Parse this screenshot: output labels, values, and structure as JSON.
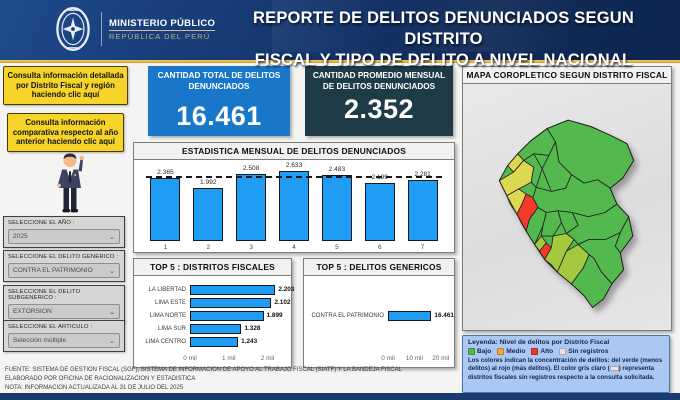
{
  "header": {
    "logo_title": "MINISTERIO PÚBLICO",
    "logo_subtitle": "REPÚBLICA DEL PERÚ",
    "title_line1": "REPORTE DE DELITOS DENUNCIADOS SEGUN DISTRITO",
    "title_line2": "FISCAL Y TIPO DE DELITO A NIVEL NACIONAL"
  },
  "sidebar": {
    "callouts": [
      {
        "text": "Consulta información detallada por Distrito Fiscal y región haciendo clic aquí"
      },
      {
        "text": "Consulta información comparativa respecto al año anterior haciendo clic aquí"
      }
    ],
    "slicers": [
      {
        "label": "SELECCIONE EL AÑO :",
        "value": "2025"
      },
      {
        "label": "SELECCIONE EL DELITO GENERICO :",
        "value": "CONTRA EL PATRIMONIO"
      },
      {
        "label": "SELECCIONE EL DELITO SUBGENERICO :",
        "value": "EXTORSION"
      },
      {
        "label": "SELECCIONE EL ARTICULO :",
        "value": "Selección múltiple"
      }
    ]
  },
  "kpis": [
    {
      "label": "CANTIDAD TOTAL DE DELITOS DENUNCIADOS",
      "value": "16.461",
      "color": "#1877c9"
    },
    {
      "label": "CANTIDAD PROMEDIO MENSUAL DE DELITOS DENUNCIADOS",
      "value": "2.352",
      "color": "#1f3b47"
    }
  ],
  "chart_data": [
    {
      "id": "monthly",
      "type": "bar",
      "orientation": "vertical",
      "title": "ESTADISTICA MENSUAL DE DELITOS DENUNCIADOS",
      "categories": [
        "1",
        "2",
        "3",
        "4",
        "5",
        "6",
        "7"
      ],
      "values": [
        2365,
        1992,
        2508,
        2633,
        2483,
        2199,
        2281
      ],
      "labels": [
        "2.365",
        "1.992",
        "2.508",
        "2.633",
        "2.483",
        "2.199",
        "2.281"
      ],
      "average_value": 2352,
      "y_max": 2700,
      "grid": false,
      "bar_color": "#1f9cf3"
    },
    {
      "id": "top5_distritos",
      "type": "bar",
      "orientation": "horizontal",
      "title": "TOP 5 : DISTRITOS FISCALES",
      "categories": [
        "LA LIBERTAD",
        "LIMA ESTE",
        "LIMA NORTE",
        "LIMA SUR",
        "LIMA CENTRO"
      ],
      "values": [
        2203,
        2102,
        1899,
        1328,
        1243
      ],
      "labels": [
        "2.203",
        "2.102",
        "1.899",
        "1.328",
        "1.243"
      ],
      "xticks": [
        {
          "value": 0,
          "label": "0 mil"
        },
        {
          "value": 1000,
          "label": "1 mil"
        },
        {
          "value": 2000,
          "label": "2 mil"
        }
      ],
      "x_max": 2400,
      "bar_color": "#1f9cf3"
    },
    {
      "id": "top5_genericos",
      "type": "bar",
      "orientation": "horizontal",
      "title": "TOP 5 : DELITOS GENERICOS",
      "categories": [
        "CONTRA EL PATRIMONIO"
      ],
      "values": [
        16461
      ],
      "labels": [
        "16.461"
      ],
      "xticks": [
        {
          "value": 0,
          "label": "0 mil"
        },
        {
          "value": 10000,
          "label": "10 mil"
        },
        {
          "value": 20000,
          "label": "20 mil"
        }
      ],
      "x_max": 22000,
      "bar_color": "#1f9cf3"
    }
  ],
  "map_panel": {
    "title": "MAPA COROPLETICO SEGUN DISTRITO FISCAL",
    "map_colors": {
      "green": "#53b84d",
      "lightgreen": "#a4c93f",
      "yellow": "#ddd852",
      "red": "#f4392d"
    },
    "legend": {
      "title": "Leyenda: Nivel de delitos por Distrito Fiscal",
      "items": [
        {
          "label": "Bajo",
          "color": "#53b84d"
        },
        {
          "label": "Medio",
          "color": "#f5a83a"
        },
        {
          "label": "Alto",
          "color": "#e8392f"
        },
        {
          "label": "Sin registros",
          "color": "#f3dde6"
        }
      ],
      "note_before": "Los colores indican la concentración de delitos: del verde (menos delitos) al rojo (más delitos). El color gris claro (",
      "note_after": ") representa distritos fiscales sin registros respecto a la consulta solicitada."
    }
  },
  "footer": {
    "lines": [
      "FUENTE: SISTEMA DE GESTION FISCAL (SGF), SISTEMA DE INFORMACION DE APOYO AL TRABAJO FISCAL (SIATF) Y LA BANDEJA FISCAL",
      "ELABORADO POR OFICINA DE RACIONALIZACION Y ESTADISTICA",
      "NOTA: INFORMACION ACTUALIZADA AL 31 DE JULIO DEL 2025"
    ]
  }
}
